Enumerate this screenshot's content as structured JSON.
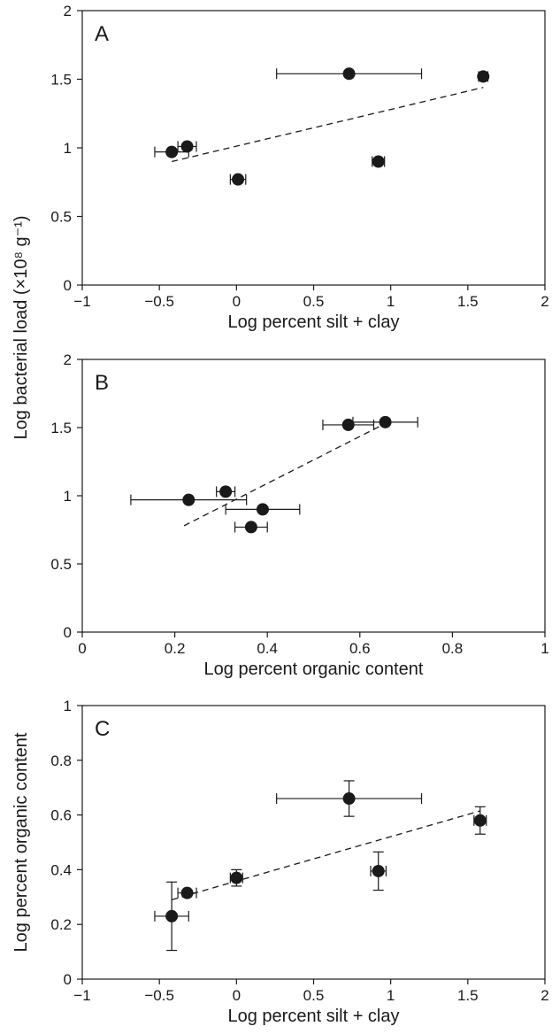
{
  "chart_data": [
    {
      "type": "scatter",
      "panel_label": "A",
      "xlabel": "Log percent silt + clay",
      "ylabel": "",
      "xlim": [
        -1,
        2
      ],
      "ylim": [
        0,
        2
      ],
      "xticks": [
        -1,
        -0.5,
        0,
        0.5,
        1,
        1.5,
        2
      ],
      "xtick_labels": [
        "−1",
        "−0.5",
        "0",
        "0.5",
        "1",
        "1.5",
        "2"
      ],
      "yticks": [
        0,
        0.5,
        1,
        1.5,
        2
      ],
      "ytick_labels": [
        "0",
        "0.5",
        "1",
        "1.5",
        "2"
      ],
      "points": [
        {
          "x": -0.42,
          "y": 0.97,
          "xerr": 0.11,
          "yerr": 0
        },
        {
          "x": -0.32,
          "y": 1.01,
          "xerr": 0.06,
          "yerr": 0
        },
        {
          "x": 0.01,
          "y": 0.77,
          "xerr": 0.05,
          "yerr": 0
        },
        {
          "x": 0.73,
          "y": 1.54,
          "xerr": 0.47,
          "yerr": 0
        },
        {
          "x": 0.92,
          "y": 0.9,
          "xerr": 0.04,
          "yerr": 0
        },
        {
          "x": 1.6,
          "y": 1.52,
          "xerr": 0.03,
          "yerr": 0
        }
      ],
      "trend": {
        "x": [
          -0.42,
          1.6
        ],
        "y": [
          0.9,
          1.44
        ]
      },
      "grid": false
    },
    {
      "type": "scatter",
      "panel_label": "B",
      "xlabel": "Log percent organic content",
      "ylabel": "Log bacterial load (×10⁸ g⁻¹)",
      "xlim": [
        0,
        1
      ],
      "ylim": [
        0,
        2
      ],
      "xticks": [
        0,
        0.2,
        0.4,
        0.6,
        0.8,
        1
      ],
      "xtick_labels": [
        "0",
        "0.2",
        "0.4",
        "0.6",
        "0.8",
        "1"
      ],
      "yticks": [
        0,
        0.5,
        1,
        1.5,
        2
      ],
      "ytick_labels": [
        "0",
        "0.5",
        "1",
        "1.5",
        "2"
      ],
      "points": [
        {
          "x": 0.23,
          "y": 0.97,
          "xerr": 0.125,
          "yerr": 0
        },
        {
          "x": 0.31,
          "y": 1.03,
          "xerr": 0.02,
          "yerr": 0
        },
        {
          "x": 0.365,
          "y": 0.77,
          "xerr": 0.035,
          "yerr": 0
        },
        {
          "x": 0.39,
          "y": 0.9,
          "xerr": 0.08,
          "yerr": 0
        },
        {
          "x": 0.575,
          "y": 1.52,
          "xerr": 0.055,
          "yerr": 0
        },
        {
          "x": 0.655,
          "y": 1.54,
          "xerr": 0.07,
          "yerr": 0
        }
      ],
      "trend": {
        "x": [
          0.22,
          0.655
        ],
        "y": [
          0.78,
          1.53
        ]
      },
      "grid": false
    },
    {
      "type": "scatter",
      "panel_label": "C",
      "xlabel": "Log percent silt + clay",
      "ylabel": "Log percent organic content",
      "xlim": [
        -1,
        2
      ],
      "ylim": [
        0,
        1
      ],
      "xticks": [
        -1,
        -0.5,
        0,
        0.5,
        1,
        1.5,
        2
      ],
      "xtick_labels": [
        "−1",
        "−0.5",
        "0",
        "0.5",
        "1",
        "1.5",
        "2"
      ],
      "yticks": [
        0,
        0.2,
        0.4,
        0.6,
        0.8,
        1
      ],
      "ytick_labels": [
        "0",
        "0.2",
        "0.4",
        "0.6",
        "0.8",
        "1"
      ],
      "points": [
        {
          "x": -0.42,
          "y": 0.23,
          "xerr": 0.11,
          "yerr": 0.125
        },
        {
          "x": -0.32,
          "y": 0.315,
          "xerr": 0.06,
          "yerr": 0.01
        },
        {
          "x": 0.0,
          "y": 0.37,
          "xerr": 0.04,
          "yerr": 0.03
        },
        {
          "x": 0.73,
          "y": 0.66,
          "xerr": 0.47,
          "yerr": 0.065
        },
        {
          "x": 0.92,
          "y": 0.395,
          "xerr": 0.05,
          "yerr": 0.07
        },
        {
          "x": 1.58,
          "y": 0.58,
          "xerr": 0.04,
          "yerr": 0.05
        }
      ],
      "trend": {
        "x": [
          -0.42,
          1.58
        ],
        "y": [
          0.29,
          0.615
        ]
      },
      "grid": false
    }
  ]
}
